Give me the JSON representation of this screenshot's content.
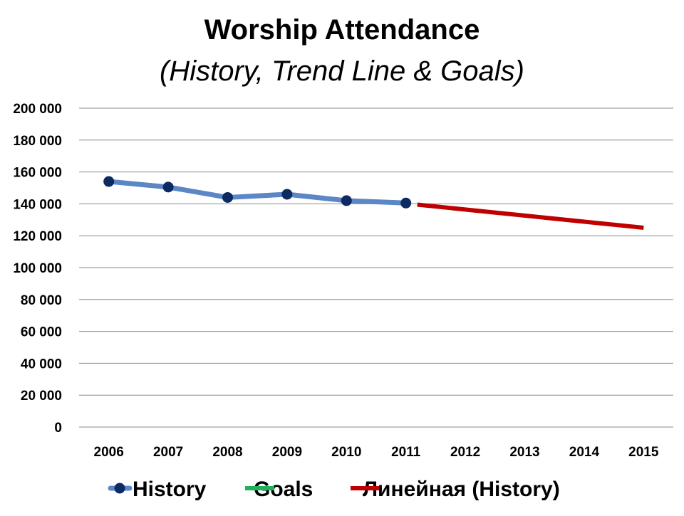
{
  "chart_data": {
    "type": "line",
    "title": "Worship Attendance",
    "subtitle": "(History, Trend Line & Goals)",
    "xlabel": "",
    "ylabel": "",
    "categories": [
      "2006",
      "2007",
      "2008",
      "2009",
      "2010",
      "2011",
      "2012",
      "2013",
      "2014",
      "2015"
    ],
    "y_ticks": [
      "0",
      "20 000",
      "40 000",
      "60 000",
      "80 000",
      "100 000",
      "120 000",
      "140 000",
      "160 000",
      "180 000",
      "200 000"
    ],
    "ylim": [
      0,
      200000
    ],
    "grid": true,
    "legend_position": "bottom",
    "series": [
      {
        "name": "History",
        "color": "#5B87C7",
        "marker_color": "#0D2A63",
        "values": [
          154000,
          150500,
          144000,
          146000,
          142000,
          140500,
          null,
          null,
          null,
          null
        ]
      },
      {
        "name": "Goals",
        "color": "#1FB25A",
        "values": [
          null,
          null,
          null,
          null,
          null,
          null,
          null,
          null,
          null,
          null
        ]
      },
      {
        "name": "Линейная (History)",
        "color": "#C00000",
        "trend": {
          "from_x": "2011",
          "to_x": "2015",
          "from_y": 139500,
          "to_y": 125000
        }
      }
    ]
  }
}
